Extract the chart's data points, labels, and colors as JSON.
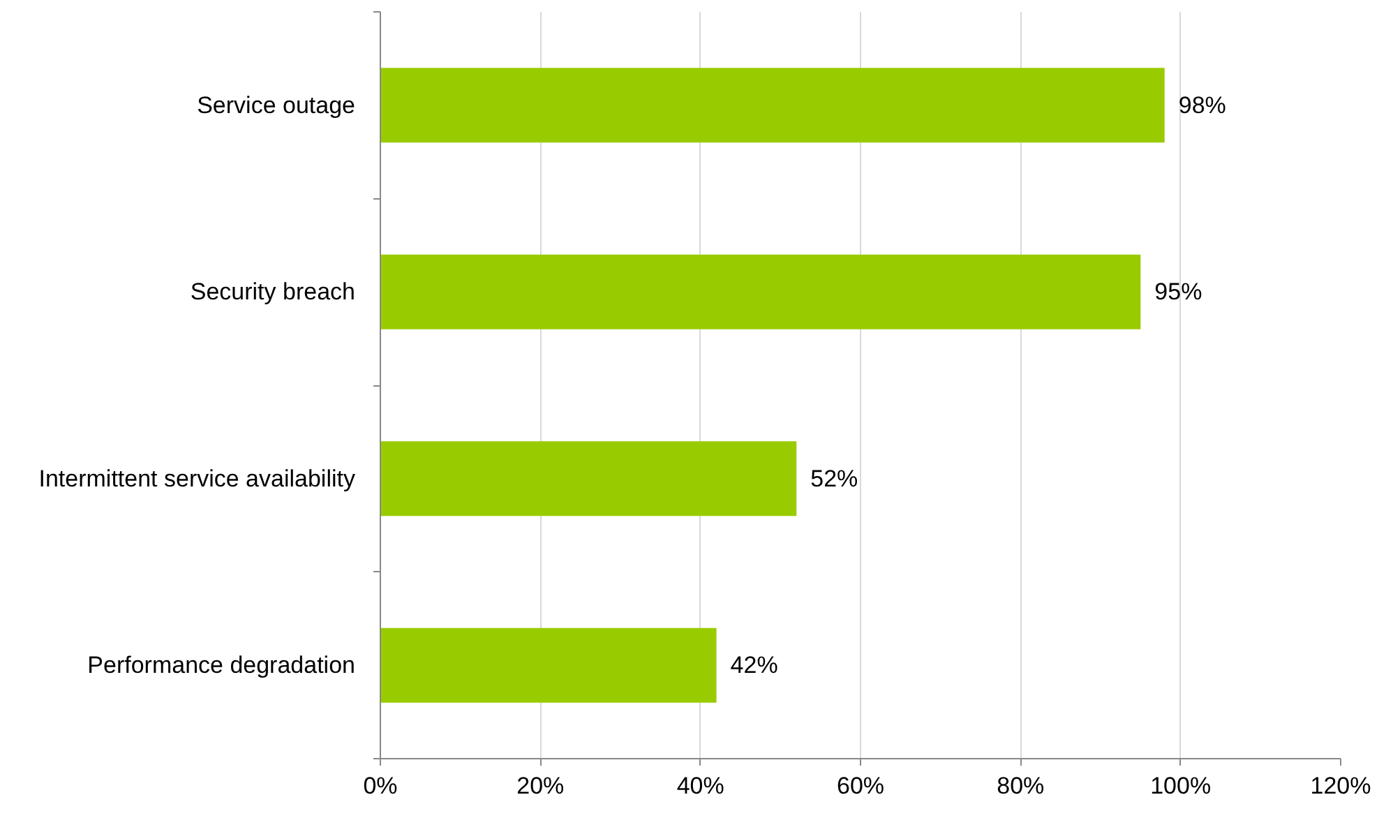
{
  "chart_data": {
    "type": "bar",
    "orientation": "horizontal",
    "categories": [
      "Service outage",
      "Security breach",
      "Intermittent service availability",
      "Performance degradation"
    ],
    "values": [
      98,
      95,
      52,
      42
    ],
    "value_labels": [
      "98%",
      "95%",
      "52%",
      "42%"
    ],
    "color": "#99cc00",
    "xlim": [
      0,
      120
    ],
    "xticks": [
      {
        "value": 0,
        "label": "0%"
      },
      {
        "value": 20,
        "label": "20%"
      },
      {
        "value": 40,
        "label": "40%"
      },
      {
        "value": 60,
        "label": "60%"
      },
      {
        "value": 80,
        "label": "80%"
      },
      {
        "value": 100,
        "label": "100%"
      },
      {
        "value": 120,
        "label": "120%"
      }
    ],
    "grid": "x"
  }
}
